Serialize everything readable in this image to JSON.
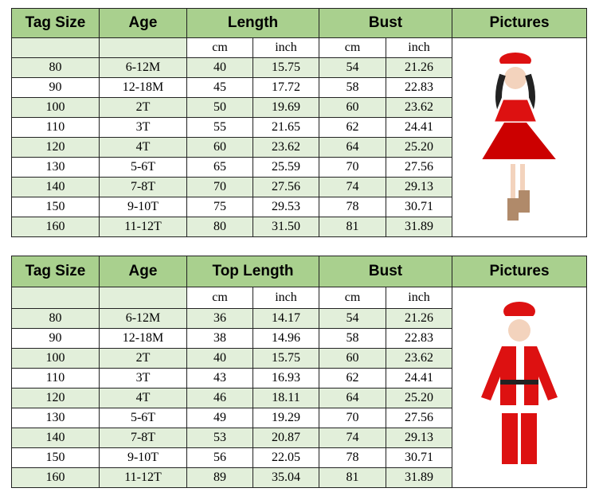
{
  "tables": [
    {
      "headers": [
        "Tag Size",
        "Age",
        "Length",
        "Bust",
        "Pictures"
      ],
      "subheaders": [
        "cm",
        "inch",
        "cm",
        "inch"
      ],
      "rows": [
        [
          "80",
          "6-12M",
          "40",
          "15.75",
          "54",
          "21.26"
        ],
        [
          "90",
          "12-18M",
          "45",
          "17.72",
          "58",
          "22.83"
        ],
        [
          "100",
          "2T",
          "50",
          "19.69",
          "60",
          "23.62"
        ],
        [
          "110",
          "3T",
          "55",
          "21.65",
          "62",
          "24.41"
        ],
        [
          "120",
          "4T",
          "60",
          "23.62",
          "64",
          "25.20"
        ],
        [
          "130",
          "5-6T",
          "65",
          "25.59",
          "70",
          "27.56"
        ],
        [
          "140",
          "7-8T",
          "70",
          "27.56",
          "74",
          "29.13"
        ],
        [
          "150",
          "9-10T",
          "75",
          "29.53",
          "78",
          "30.71"
        ],
        [
          "160",
          "11-12T",
          "80",
          "31.50",
          "81",
          "31.89"
        ]
      ]
    },
    {
      "headers": [
        "Tag Size",
        "Age",
        "Top Length",
        "Bust",
        "Pictures"
      ],
      "subheaders": [
        "cm",
        "inch",
        "cm",
        "inch"
      ],
      "rows": [
        [
          "80",
          "6-12M",
          "36",
          "14.17",
          "54",
          "21.26"
        ],
        [
          "90",
          "12-18M",
          "38",
          "14.96",
          "58",
          "22.83"
        ],
        [
          "100",
          "2T",
          "40",
          "15.75",
          "60",
          "23.62"
        ],
        [
          "110",
          "3T",
          "43",
          "16.93",
          "62",
          "24.41"
        ],
        [
          "120",
          "4T",
          "46",
          "18.11",
          "64",
          "25.20"
        ],
        [
          "130",
          "5-6T",
          "49",
          "19.29",
          "70",
          "27.56"
        ],
        [
          "140",
          "7-8T",
          "53",
          "20.87",
          "74",
          "29.13"
        ],
        [
          "150",
          "9-10T",
          "56",
          "22.05",
          "78",
          "30.71"
        ],
        [
          "160",
          "11-12T",
          "89",
          "35.04",
          "81",
          "31.89"
        ]
      ]
    }
  ]
}
